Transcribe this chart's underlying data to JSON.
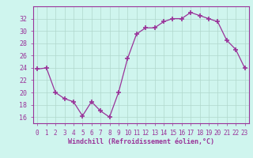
{
  "x": [
    0,
    1,
    2,
    3,
    4,
    5,
    6,
    7,
    8,
    9,
    10,
    11,
    12,
    13,
    14,
    15,
    16,
    17,
    18,
    19,
    20,
    21,
    22,
    23
  ],
  "y": [
    23.8,
    24.0,
    20.0,
    19.0,
    18.5,
    16.2,
    18.5,
    17.0,
    16.0,
    20.0,
    25.5,
    29.5,
    30.5,
    30.5,
    31.5,
    32.0,
    32.0,
    33.0,
    32.5,
    32.0,
    31.5,
    28.5,
    27.0,
    24.0
  ],
  "line_color": "#993399",
  "marker": "+",
  "marker_size": 4,
  "marker_linewidth": 1.2,
  "bg_color": "#cff5ee",
  "grid_color": "#b0d8cc",
  "xlabel": "Windchill (Refroidissement éolien,°C)",
  "xlabel_color": "#993399",
  "tick_color": "#993399",
  "ylim": [
    15,
    34
  ],
  "yticks": [
    16,
    18,
    20,
    22,
    24,
    26,
    28,
    30,
    32
  ],
  "xlim": [
    -0.5,
    23.5
  ],
  "xticks": [
    0,
    1,
    2,
    3,
    4,
    5,
    6,
    7,
    8,
    9,
    10,
    11,
    12,
    13,
    14,
    15,
    16,
    17,
    18,
    19,
    20,
    21,
    22,
    23
  ],
  "xtick_labels": [
    "0",
    "1",
    "2",
    "3",
    "4",
    "5",
    "6",
    "7",
    "8",
    "9",
    "10",
    "11",
    "12",
    "13",
    "14",
    "15",
    "16",
    "17",
    "18",
    "19",
    "20",
    "21",
    "22",
    "23"
  ]
}
